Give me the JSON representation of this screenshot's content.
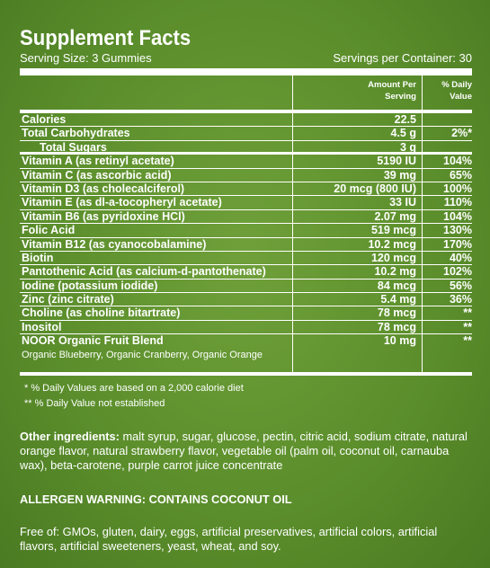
{
  "title": "Supplement Facts",
  "serving_size": "Serving Size: 3 Gummies",
  "servings_per_container": "Servings per Container: 30",
  "headers": {
    "amount_line1": "Amount Per",
    "amount_line2": "Serving",
    "dv_line1": "% Daily",
    "dv_line2": "Value"
  },
  "rows": [
    {
      "name": "Calories",
      "amount": "22.5",
      "dv": ""
    },
    {
      "name": "Total Carbohydrates",
      "amount": "4.5 g",
      "dv": "2%*"
    },
    {
      "name": "Total Sugars",
      "amount": "3 g",
      "dv": ""
    },
    {
      "name": "Vitamin A (as retinyl acetate)",
      "amount": "5190 IU",
      "dv": "104%"
    },
    {
      "name": "Vitamin C (as ascorbic acid)",
      "amount": "39 mg",
      "dv": "65%"
    },
    {
      "name": "Vitamin D3 (as cholecalciferol)",
      "amount": "20 mcg (800 IU)",
      "dv": "100%"
    },
    {
      "name": "Vitamin E (as dl-a-tocopheryl acetate)",
      "amount": "33 IU",
      "dv": "110%"
    },
    {
      "name": "Vitamin B6 (as pyridoxine HCl)",
      "amount": "2.07 mg",
      "dv": "104%"
    },
    {
      "name": "Folic Acid",
      "amount": "519 mcg",
      "dv": "130%"
    },
    {
      "name": "Vitamin B12 (as cyanocobalamine)",
      "amount": "10.2 mcg",
      "dv": "170%"
    },
    {
      "name": "Biotin",
      "amount": "120 mcg",
      "dv": "40%"
    },
    {
      "name": "Pantothenic Acid (as calcium-d-pantothenate)",
      "amount": "10.2 mg",
      "dv": "102%"
    },
    {
      "name": "Iodine (potassium iodide)",
      "amount": "84 mcg",
      "dv": "56%"
    },
    {
      "name": "Zinc (zinc citrate)",
      "amount": "5.4 mg",
      "dv": "36%"
    },
    {
      "name": "Choline (as choline bitartrate)",
      "amount": "78 mcg",
      "dv": "**"
    },
    {
      "name": "Inositol",
      "amount": "78 mcg",
      "dv": "**"
    },
    {
      "name": "NOOR Organic Fruit Blend",
      "amount": "10 mg",
      "dv": "**",
      "sub": "Organic Blueberry, Organic Cranberry, Organic Orange"
    }
  ],
  "footnotes": [
    "* % Daily Values are based on a 2,000 calorie diet",
    "** % Daily Value not established"
  ],
  "other_ingredients_label": "Other ingredients:",
  "other_ingredients": " malt syrup, sugar, glucose, pectin, citric acid, sodium citrate, natural orange flavor, natural strawberry flavor, vegetable oil (palm oil, coconut oil, carnauba wax), beta-carotene, purple carrot juice concentrate",
  "allergen_warning": "ALLERGEN WARNING: CONTAINS COCONUT OIL",
  "free_of": "Free of: GMOs, gluten, dairy, eggs, artificial preservatives, artificial colors, artificial flavors, artificial sweeteners, yeast, wheat, and soy."
}
